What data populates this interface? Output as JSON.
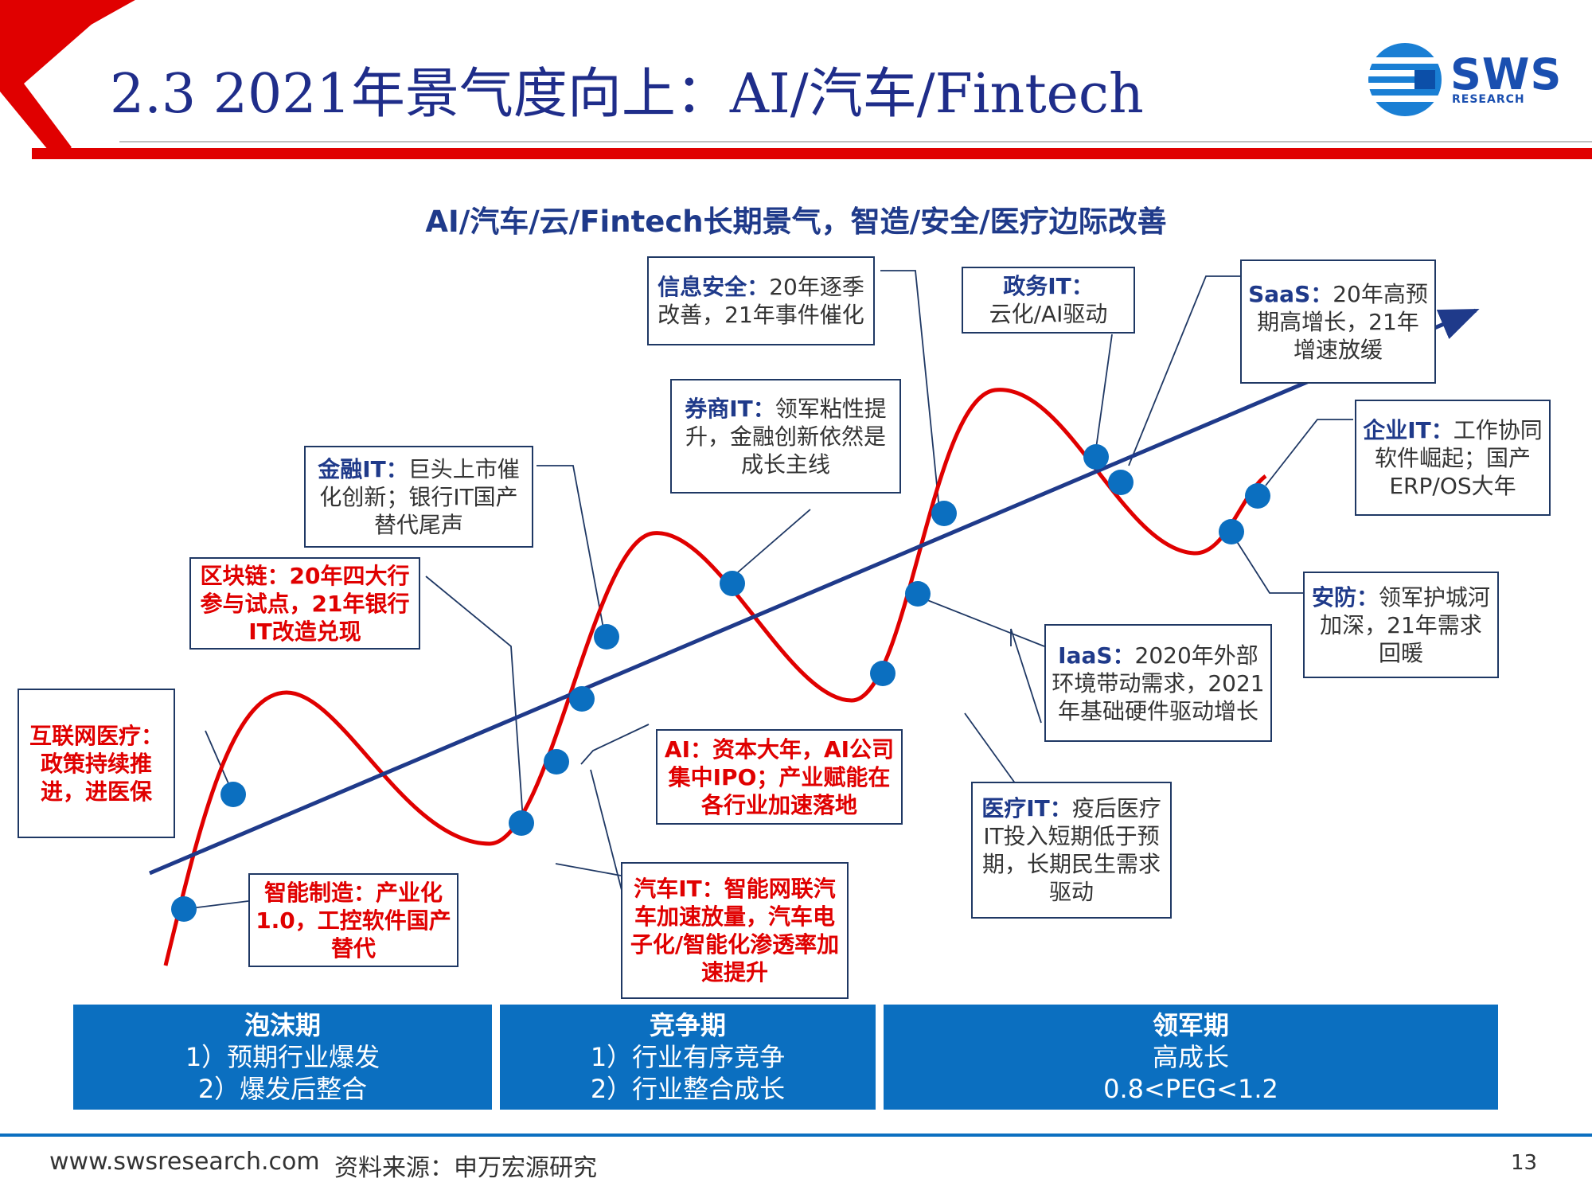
{
  "header": {
    "title": "2.3 2021年景气度向上：AI/汽车/Fintech",
    "logo": {
      "text": "SWS",
      "subtext": "RESEARCH",
      "icon": "sws-globe-logo"
    }
  },
  "diagram": {
    "heading": "AI/汽车/云/Fintech长期景气，智造/安全/医疗边际改善",
    "colors": {
      "curve": "#e00000",
      "trend": "#1f3a8a",
      "dots": "#0b6fc0",
      "phase_bg": "#0b6fc0"
    },
    "callouts": {
      "hulianwang": {
        "kw": "互联网医疗：",
        "rest": "政策持续推进，进医保"
      },
      "zhineng": {
        "kw": "智能制造：",
        "rest": "产业化1.0，工控软件国产替代"
      },
      "qukuailian": {
        "kw": "区块链：",
        "rest": "20年四大行参与试点，21年银行IT改造兑现"
      },
      "jinrong": {
        "kw": "金融IT：",
        "rest": "巨头上市催化创新；银行IT国产替代尾声"
      },
      "xinxi": {
        "kw": "信息安全：",
        "rest": "20年逐季改善，21年事件催化"
      },
      "quanshang": {
        "kw": "券商IT：",
        "rest": "领军粘性提升，金融创新依然是成长主线"
      },
      "ai": {
        "kw": "AI：",
        "rest": "资本大年，AI公司集中IPO；产业赋能在各行业加速落地"
      },
      "qiche": {
        "kw": "汽车IT：",
        "rest": "智能网联汽车加速放量，汽车电子化/智能化渗透率加速提升"
      },
      "zhengwu": {
        "kw": "政务IT：",
        "rest": "云化/AI驱动"
      },
      "iaas": {
        "kw": "IaaS：",
        "rest": "2020年外部环境带动需求，2021年基础硬件驱动增长"
      },
      "yiliao": {
        "kw": "医疗IT：",
        "rest": "疫后医疗IT投入短期低于预期，长期民生需求驱动"
      },
      "saas": {
        "kw": "SaaS：",
        "rest": "20年高预期高增长，21年增速放缓"
      },
      "qiye": {
        "kw": "企业IT：",
        "rest": "工作协同软件崛起；国产ERP/OS大年"
      },
      "anfang": {
        "kw": "安防：",
        "rest": "领军护城河加深，21年需求回暖"
      }
    },
    "phases": [
      {
        "name": "泡沫期",
        "line1": "1）预期行业爆发",
        "line2": "2）爆发后整合"
      },
      {
        "name": "竞争期",
        "line1": "1）行业有序竞争",
        "line2": "2）行业整合成长"
      },
      {
        "name": "领军期",
        "line1": "高成长",
        "line2": "0.8<PEG<1.2"
      }
    ]
  },
  "footer": {
    "url": "www.swsresearch.com",
    "source": "资料来源：申万宏源研究",
    "page": "13"
  }
}
